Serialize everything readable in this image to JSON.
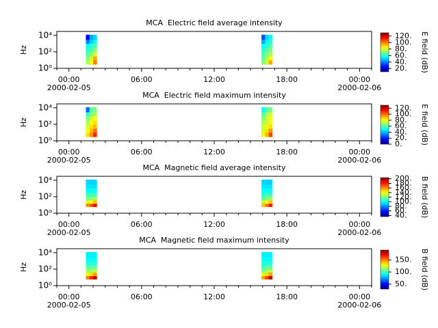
{
  "chart_data": [
    {
      "type": "spectrogram",
      "title": "MCA  Electric field average intensity",
      "ylabel": "Hz",
      "colorbar_label": "E field (dB)",
      "colormap": "jet",
      "log_y": true,
      "x_edges": [
        1.4,
        1.7,
        2.0,
        2.3,
        15.9,
        16.2,
        16.5,
        16.8
      ],
      "y_edges": [
        3,
        10,
        30,
        100,
        300,
        1000,
        3000,
        12000
      ],
      "z": [
        [
          75,
          85,
          100,
          null,
          70,
          80,
          95
        ],
        [
          70,
          80,
          95,
          null,
          65,
          75,
          85
        ],
        [
          65,
          70,
          80,
          null,
          65,
          70,
          75
        ],
        [
          60,
          65,
          70,
          null,
          60,
          65,
          70
        ],
        [
          55,
          60,
          65,
          null,
          55,
          60,
          65
        ],
        [
          40,
          50,
          55,
          null,
          45,
          55,
          60
        ],
        [
          25,
          45,
          50,
          null,
          35,
          50,
          55
        ]
      ],
      "xlim": [
        -1,
        25
      ],
      "ylim": [
        1,
        30000
      ],
      "xticks": [
        {
          "value": 0,
          "label": "00:00"
        },
        {
          "value": 6,
          "label": "06:00"
        },
        {
          "value": 12,
          "label": "12:00"
        },
        {
          "value": 18,
          "label": "18:00"
        },
        {
          "value": 24,
          "label": "00:00"
        }
      ],
      "xticks_minor": [
        -1,
        1,
        2,
        3,
        4,
        5,
        7,
        8,
        9,
        10,
        11,
        13,
        14,
        15,
        16,
        17,
        19,
        20,
        21,
        22,
        23,
        25
      ],
      "xdate_labels": [
        {
          "value": 0,
          "label": "2000-02-05"
        },
        {
          "value": 24,
          "label": "2000-02-06"
        }
      ],
      "yticks": [
        {
          "value": 1,
          "label": "10⁰"
        },
        {
          "value": 100,
          "label": "10²"
        },
        {
          "value": 10000,
          "label": "10⁴"
        }
      ],
      "clim": [
        10,
        130
      ],
      "cticks": [
        {
          "value": 20,
          "label": "20."
        },
        {
          "value": 40,
          "label": "40."
        },
        {
          "value": 60,
          "label": "60."
        },
        {
          "value": 80,
          "label": "80."
        },
        {
          "value": 100,
          "label": "100."
        },
        {
          "value": 120,
          "label": "120."
        }
      ]
    },
    {
      "type": "spectrogram",
      "title": "MCA  Electric field maximum intensity",
      "ylabel": "Hz",
      "colorbar_label": "E field (dB)",
      "colormap": "jet",
      "log_y": true,
      "x_edges": [
        1.4,
        1.7,
        2.0,
        2.3,
        15.9,
        16.2,
        16.5,
        16.8
      ],
      "y_edges": [
        3,
        10,
        30,
        100,
        300,
        1000,
        3000,
        12000
      ],
      "z": [
        [
          85,
          95,
          110,
          null,
          80,
          90,
          105
        ],
        [
          80,
          90,
          100,
          null,
          75,
          85,
          95
        ],
        [
          75,
          85,
          90,
          null,
          75,
          80,
          85
        ],
        [
          70,
          80,
          85,
          null,
          70,
          75,
          80
        ],
        [
          65,
          75,
          80,
          null,
          65,
          75,
          80
        ],
        [
          55,
          65,
          70,
          null,
          60,
          70,
          75
        ],
        [
          30,
          60,
          65,
          null,
          50,
          60,
          65
        ]
      ],
      "xlim": [
        -1,
        25
      ],
      "ylim": [
        1,
        30000
      ],
      "xticks": [
        {
          "value": 0,
          "label": "00:00"
        },
        {
          "value": 6,
          "label": "06:00"
        },
        {
          "value": 12,
          "label": "12:00"
        },
        {
          "value": 18,
          "label": "18:00"
        },
        {
          "value": 24,
          "label": "00:00"
        }
      ],
      "xticks_minor": [
        -1,
        1,
        2,
        3,
        4,
        5,
        7,
        8,
        9,
        10,
        11,
        13,
        14,
        15,
        16,
        17,
        19,
        20,
        21,
        22,
        23,
        25
      ],
      "xdate_labels": [
        {
          "value": 0,
          "label": "2000-02-05"
        },
        {
          "value": 24,
          "label": "2000-02-06"
        }
      ],
      "yticks": [
        {
          "value": 1,
          "label": "10⁰"
        },
        {
          "value": 100,
          "label": "10²"
        },
        {
          "value": 10000,
          "label": "10⁴"
        }
      ],
      "clim": [
        0,
        130
      ],
      "cticks": [
        {
          "value": 0,
          "label": "0."
        },
        {
          "value": 20,
          "label": "20."
        },
        {
          "value": 40,
          "label": "40."
        },
        {
          "value": 60,
          "label": "60."
        },
        {
          "value": 80,
          "label": "80."
        },
        {
          "value": 100,
          "label": "100."
        },
        {
          "value": 120,
          "label": "120."
        }
      ]
    },
    {
      "type": "spectrogram",
      "title": "MCA  Magnetic field average intensity",
      "ylabel": "Hz",
      "colorbar_label": "B field (dB)",
      "colormap": "jet",
      "log_y": true,
      "x_edges": [
        1.4,
        1.7,
        2.0,
        2.3,
        15.9,
        16.2,
        16.5,
        16.8
      ],
      "y_edges": [
        6,
        15,
        40,
        100,
        300,
        1000,
        3000,
        12000
      ],
      "z": [
        [
          160,
          170,
          185,
          null,
          150,
          165,
          180
        ],
        [
          135,
          140,
          150,
          null,
          130,
          140,
          150
        ],
        [
          120,
          120,
          125,
          null,
          115,
          120,
          125
        ],
        [
          110,
          110,
          110,
          null,
          105,
          110,
          110
        ],
        [
          100,
          100,
          100,
          null,
          100,
          100,
          100
        ],
        [
          95,
          95,
          95,
          null,
          95,
          95,
          95
        ],
        [
          92,
          92,
          92,
          null,
          92,
          92,
          92
        ]
      ],
      "xlim": [
        -1,
        25
      ],
      "ylim": [
        1,
        30000
      ],
      "xticks": [
        {
          "value": 0,
          "label": "00:00"
        },
        {
          "value": 6,
          "label": "06:00"
        },
        {
          "value": 12,
          "label": "12:00"
        },
        {
          "value": 18,
          "label": "18:00"
        },
        {
          "value": 24,
          "label": "00:00"
        }
      ],
      "xticks_minor": [
        -1,
        1,
        2,
        3,
        4,
        5,
        7,
        8,
        9,
        10,
        11,
        13,
        14,
        15,
        16,
        17,
        19,
        20,
        21,
        22,
        23,
        25
      ],
      "xdate_labels": [
        {
          "value": 0,
          "label": "2000-02-05"
        },
        {
          "value": 24,
          "label": "2000-02-06"
        }
      ],
      "yticks": [
        {
          "value": 1,
          "label": "10⁰"
        },
        {
          "value": 100,
          "label": "10²"
        },
        {
          "value": 10000,
          "label": "10⁴"
        }
      ],
      "clim": [
        35,
        205
      ],
      "cticks": [
        {
          "value": 40,
          "label": "40."
        },
        {
          "value": 60,
          "label": "60."
        },
        {
          "value": 80,
          "label": "80."
        },
        {
          "value": 100,
          "label": "100."
        },
        {
          "value": 120,
          "label": "120."
        },
        {
          "value": 140,
          "label": "140."
        },
        {
          "value": 160,
          "label": "160."
        },
        {
          "value": 180,
          "label": "180."
        },
        {
          "value": 200,
          "label": "200."
        }
      ]
    },
    {
      "type": "spectrogram",
      "title": "MCA  Magnetic field maximum intensity",
      "ylabel": "Hz",
      "colorbar_label": "B field (dB)",
      "colormap": "jet",
      "log_y": true,
      "x_edges": [
        1.4,
        1.7,
        2.0,
        2.3,
        15.9,
        16.2,
        16.5,
        16.8
      ],
      "y_edges": [
        6,
        15,
        40,
        100,
        300,
        1000,
        3000,
        12000
      ],
      "z": [
        [
          150,
          165,
          180,
          null,
          145,
          160,
          180
        ],
        [
          130,
          135,
          145,
          null,
          125,
          135,
          145
        ],
        [
          115,
          115,
          120,
          null,
          110,
          115,
          120
        ],
        [
          105,
          105,
          105,
          null,
          100,
          105,
          105
        ],
        [
          95,
          95,
          95,
          null,
          95,
          95,
          95
        ],
        [
          90,
          90,
          90,
          null,
          90,
          90,
          90
        ],
        [
          88,
          88,
          88,
          null,
          88,
          88,
          88
        ]
      ],
      "xlim": [
        -1,
        25
      ],
      "ylim": [
        1,
        30000
      ],
      "xticks": [
        {
          "value": 0,
          "label": "00:00"
        },
        {
          "value": 6,
          "label": "06:00"
        },
        {
          "value": 12,
          "label": "12:00"
        },
        {
          "value": 18,
          "label": "18:00"
        },
        {
          "value": 24,
          "label": "00:00"
        }
      ],
      "xticks_minor": [
        -1,
        1,
        2,
        3,
        4,
        5,
        7,
        8,
        9,
        10,
        11,
        13,
        14,
        15,
        16,
        17,
        19,
        20,
        21,
        22,
        23,
        25
      ],
      "xdate_labels": [
        {
          "value": 0,
          "label": "2000-02-05"
        },
        {
          "value": 24,
          "label": "2000-02-06"
        }
      ],
      "yticks": [
        {
          "value": 1,
          "label": "10⁰"
        },
        {
          "value": 100,
          "label": "10²"
        },
        {
          "value": 10000,
          "label": "10⁴"
        }
      ],
      "clim": [
        30,
        190
      ],
      "cticks": [
        {
          "value": 50,
          "label": "50."
        },
        {
          "value": 100,
          "label": "100."
        },
        {
          "value": 150,
          "label": "150."
        }
      ]
    }
  ]
}
